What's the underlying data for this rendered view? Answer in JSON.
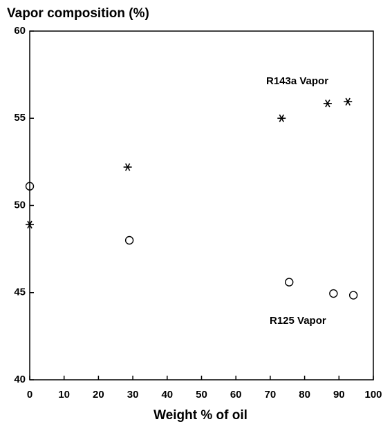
{
  "chart_data": {
    "type": "scatter",
    "y_label": "Vapor composition (%)",
    "x_label": "Weight % of oil",
    "xlim": [
      0,
      100
    ],
    "xticks": [
      0,
      10,
      20,
      30,
      40,
      50,
      60,
      70,
      80,
      90,
      100
    ],
    "ylim": [
      40,
      60
    ],
    "yticks": [
      40,
      45,
      50,
      55,
      60
    ],
    "grid": false,
    "series": [
      {
        "name": "R143a Vapor",
        "color": "#000000",
        "marker": "asterisk",
        "x": [
          0,
          28.5,
          73.3,
          86.7,
          92.6
        ],
        "values": [
          48.9,
          52.2,
          55.0,
          55.85,
          55.95
        ]
      },
      {
        "name": "R125 Vapor",
        "color": "#000000",
        "marker": "circle",
        "x": [
          0,
          29,
          75.5,
          88.4,
          94.2
        ],
        "values": [
          51.1,
          48.0,
          45.6,
          44.95,
          44.85
        ]
      }
    ]
  }
}
